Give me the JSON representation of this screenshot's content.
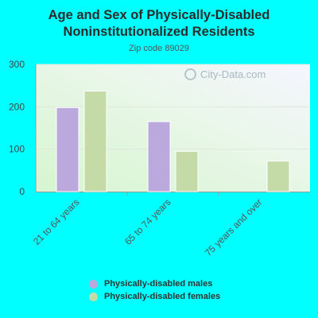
{
  "header": {
    "title_line1": "Age and Sex of Physically-Disabled",
    "title_line2": "Noninstitutionalized Residents",
    "subtitle": "Zip code 89029"
  },
  "watermark": {
    "text": "City-Data.com"
  },
  "colors": {
    "males": "#bba8dc",
    "females": "#c5dba7",
    "background": "#00ffff"
  },
  "chart_data": {
    "type": "bar",
    "title": "Age and Sex of Physically-Disabled Noninstitutionalized Residents",
    "subtitle": "Zip code 89029",
    "categories": [
      "21 to 64 years",
      "65 to 74 years",
      "75 years and over"
    ],
    "series": [
      {
        "name": "Physically-disabled males",
        "values": [
          198,
          165,
          0
        ]
      },
      {
        "name": "Physically-disabled females",
        "values": [
          237,
          95,
          72
        ]
      }
    ],
    "ylim": [
      0,
      300
    ],
    "yticks": [
      0,
      100,
      200,
      300
    ],
    "grid": true,
    "legend": "bottom"
  }
}
